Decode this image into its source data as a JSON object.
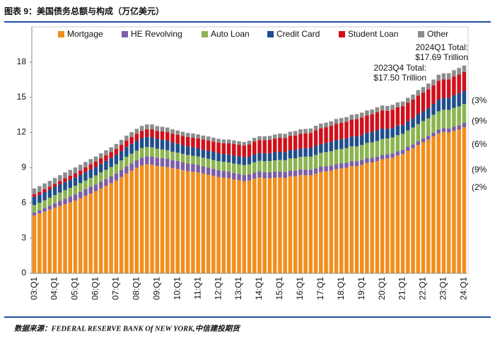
{
  "chart_data": {
    "type": "stacked_bar",
    "title": "图表 9：美国债务总额与构成（万亿美元）",
    "source": "数据来源：FEDERAL RESERVE BANK Of NEW YORK,中信建投期货",
    "categories": [
      "03:Q1",
      null,
      null,
      null,
      "04:Q1",
      null,
      null,
      null,
      "05:Q1",
      null,
      null,
      null,
      "06:Q1",
      null,
      null,
      null,
      "07:Q1",
      null,
      null,
      null,
      "08:Q1",
      null,
      null,
      null,
      "09:Q1",
      null,
      null,
      null,
      "10:Q1",
      null,
      null,
      null,
      "11:Q1",
      null,
      null,
      null,
      "12:Q1",
      null,
      null,
      null,
      "13:Q1",
      null,
      null,
      null,
      "14:Q1",
      null,
      null,
      null,
      "15:Q1",
      null,
      null,
      null,
      "16:Q1",
      null,
      null,
      null,
      "17:Q1",
      null,
      null,
      null,
      "18:Q1",
      null,
      null,
      null,
      "19:Q1",
      null,
      null,
      null,
      "20:Q1",
      null,
      null,
      null,
      "21:Q1",
      null,
      null,
      null,
      "22:Q1",
      null,
      null,
      null,
      "23:Q1",
      null,
      null,
      null,
      "24:Q1"
    ],
    "series": [
      {
        "name": "Mortgage",
        "color": "#f28e1c",
        "values": [
          4.94,
          5.1,
          5.27,
          5.43,
          5.6,
          5.75,
          5.9,
          6.05,
          6.2,
          6.4,
          6.6,
          6.8,
          7.0,
          7.23,
          7.45,
          7.68,
          7.9,
          8.2,
          8.5,
          8.75,
          9.0,
          9.2,
          9.29,
          9.25,
          9.14,
          9.1,
          9.05,
          8.95,
          8.9,
          8.8,
          8.7,
          8.65,
          8.6,
          8.5,
          8.4,
          8.3,
          8.2,
          8.15,
          8.1,
          8.0,
          7.93,
          7.84,
          7.9,
          8.05,
          8.17,
          8.1,
          8.1,
          8.15,
          8.17,
          8.12,
          8.26,
          8.25,
          8.37,
          8.36,
          8.35,
          8.48,
          8.63,
          8.69,
          8.74,
          8.88,
          8.94,
          9.0,
          9.14,
          9.12,
          9.24,
          9.41,
          9.44,
          9.56,
          9.71,
          9.78,
          9.86,
          10.04,
          10.16,
          10.44,
          10.67,
          10.93,
          11.18,
          11.39,
          11.67,
          11.92,
          12.04,
          12.01,
          12.14,
          12.25,
          12.44
        ]
      },
      {
        "name": "HE Revolving",
        "color": "#7b5ea7",
        "values": [
          0.24,
          0.26,
          0.29,
          0.33,
          0.37,
          0.42,
          0.46,
          0.5,
          0.53,
          0.54,
          0.56,
          0.57,
          0.57,
          0.58,
          0.58,
          0.59,
          0.6,
          0.61,
          0.61,
          0.62,
          0.64,
          0.66,
          0.68,
          0.7,
          0.71,
          0.71,
          0.7,
          0.69,
          0.68,
          0.67,
          0.66,
          0.65,
          0.63,
          0.62,
          0.61,
          0.6,
          0.58,
          0.57,
          0.56,
          0.55,
          0.54,
          0.54,
          0.53,
          0.53,
          0.52,
          0.52,
          0.52,
          0.51,
          0.51,
          0.51,
          0.5,
          0.49,
          0.48,
          0.48,
          0.47,
          0.47,
          0.46,
          0.45,
          0.45,
          0.44,
          0.44,
          0.43,
          0.42,
          0.42,
          0.41,
          0.4,
          0.4,
          0.39,
          0.39,
          0.37,
          0.36,
          0.36,
          0.35,
          0.33,
          0.32,
          0.32,
          0.32,
          0.32,
          0.32,
          0.34,
          0.34,
          0.34,
          0.35,
          0.36,
          0.38
        ]
      },
      {
        "name": "Auto Loan",
        "color": "#8cb450",
        "values": [
          0.64,
          0.65,
          0.67,
          0.68,
          0.7,
          0.71,
          0.72,
          0.72,
          0.73,
          0.74,
          0.75,
          0.76,
          0.77,
          0.78,
          0.79,
          0.79,
          0.8,
          0.81,
          0.82,
          0.82,
          0.81,
          0.81,
          0.8,
          0.79,
          0.77,
          0.75,
          0.74,
          0.72,
          0.71,
          0.71,
          0.72,
          0.72,
          0.73,
          0.73,
          0.75,
          0.75,
          0.77,
          0.78,
          0.79,
          0.81,
          0.82,
          0.84,
          0.86,
          0.88,
          0.9,
          0.93,
          0.95,
          0.96,
          0.99,
          1.01,
          1.03,
          1.05,
          1.07,
          1.1,
          1.12,
          1.14,
          1.17,
          1.19,
          1.21,
          1.22,
          1.22,
          1.24,
          1.26,
          1.27,
          1.28,
          1.3,
          1.32,
          1.33,
          1.35,
          1.34,
          1.36,
          1.37,
          1.37,
          1.4,
          1.43,
          1.46,
          1.47,
          1.5,
          1.52,
          1.55,
          1.56,
          1.58,
          1.6,
          1.61,
          1.62
        ]
      },
      {
        "name": "Credit Card",
        "color": "#1f4e8c",
        "values": [
          0.69,
          0.69,
          0.69,
          0.7,
          0.7,
          0.7,
          0.7,
          0.71,
          0.71,
          0.71,
          0.72,
          0.73,
          0.74,
          0.75,
          0.76,
          0.77,
          0.79,
          0.8,
          0.82,
          0.84,
          0.84,
          0.85,
          0.86,
          0.87,
          0.84,
          0.83,
          0.82,
          0.79,
          0.76,
          0.74,
          0.73,
          0.73,
          0.69,
          0.69,
          0.69,
          0.7,
          0.68,
          0.67,
          0.67,
          0.68,
          0.67,
          0.67,
          0.67,
          0.68,
          0.66,
          0.67,
          0.67,
          0.7,
          0.69,
          0.7,
          0.71,
          0.73,
          0.71,
          0.73,
          0.74,
          0.78,
          0.76,
          0.78,
          0.81,
          0.83,
          0.82,
          0.83,
          0.84,
          0.87,
          0.85,
          0.87,
          0.88,
          0.93,
          0.89,
          0.82,
          0.81,
          0.82,
          0.77,
          0.79,
          0.8,
          0.86,
          0.84,
          0.89,
          0.93,
          0.99,
          0.99,
          1.03,
          1.08,
          1.13,
          1.12
        ]
      },
      {
        "name": "Student Loan",
        "color": "#d0101a",
        "values": [
          0.24,
          0.24,
          0.25,
          0.25,
          0.26,
          0.28,
          0.31,
          0.33,
          0.36,
          0.38,
          0.4,
          0.43,
          0.45,
          0.46,
          0.48,
          0.49,
          0.51,
          0.53,
          0.56,
          0.58,
          0.61,
          0.62,
          0.64,
          0.66,
          0.68,
          0.7,
          0.72,
          0.74,
          0.76,
          0.78,
          0.8,
          0.82,
          0.84,
          0.86,
          0.87,
          0.87,
          0.9,
          0.91,
          0.96,
          0.97,
          0.99,
          0.99,
          1.03,
          1.08,
          1.11,
          1.12,
          1.13,
          1.16,
          1.19,
          1.19,
          1.2,
          1.23,
          1.26,
          1.26,
          1.28,
          1.31,
          1.34,
          1.34,
          1.36,
          1.38,
          1.41,
          1.41,
          1.44,
          1.46,
          1.49,
          1.48,
          1.5,
          1.51,
          1.54,
          1.54,
          1.55,
          1.56,
          1.58,
          1.57,
          1.58,
          1.58,
          1.59,
          1.59,
          1.57,
          1.6,
          1.6,
          1.57,
          1.6,
          1.6,
          1.6
        ]
      },
      {
        "name": "Other",
        "color": "#8c8c8c",
        "values": [
          0.48,
          0.49,
          0.49,
          0.49,
          0.49,
          0.5,
          0.5,
          0.5,
          0.49,
          0.48,
          0.46,
          0.44,
          0.42,
          0.42,
          0.42,
          0.42,
          0.42,
          0.42,
          0.42,
          0.42,
          0.41,
          0.42,
          0.42,
          0.42,
          0.41,
          0.4,
          0.39,
          0.38,
          0.36,
          0.36,
          0.35,
          0.35,
          0.35,
          0.34,
          0.34,
          0.34,
          0.33,
          0.32,
          0.32,
          0.32,
          0.31,
          0.31,
          0.31,
          0.32,
          0.32,
          0.33,
          0.34,
          0.35,
          0.36,
          0.36,
          0.37,
          0.38,
          0.38,
          0.38,
          0.38,
          0.39,
          0.39,
          0.39,
          0.39,
          0.4,
          0.4,
          0.4,
          0.41,
          0.42,
          0.42,
          0.42,
          0.42,
          0.43,
          0.42,
          0.41,
          0.42,
          0.42,
          0.41,
          0.42,
          0.43,
          0.46,
          0.47,
          0.48,
          0.5,
          0.52,
          0.51,
          0.52,
          0.54,
          0.55,
          0.54
        ]
      }
    ],
    "ylim": [
      0,
      21
    ],
    "yticks": [
      0,
      3,
      6,
      9,
      12,
      15,
      18
    ],
    "annotations": [
      {
        "lines": [
          "2024Q1 Total:",
          "$17.69 Trillion"
        ]
      },
      {
        "lines": [
          "2023Q4 Total:",
          "$17.50 Trillion"
        ]
      }
    ],
    "side_labels": [
      "(3%",
      "(9%",
      "(6%",
      "(9%",
      "(2%"
    ]
  }
}
